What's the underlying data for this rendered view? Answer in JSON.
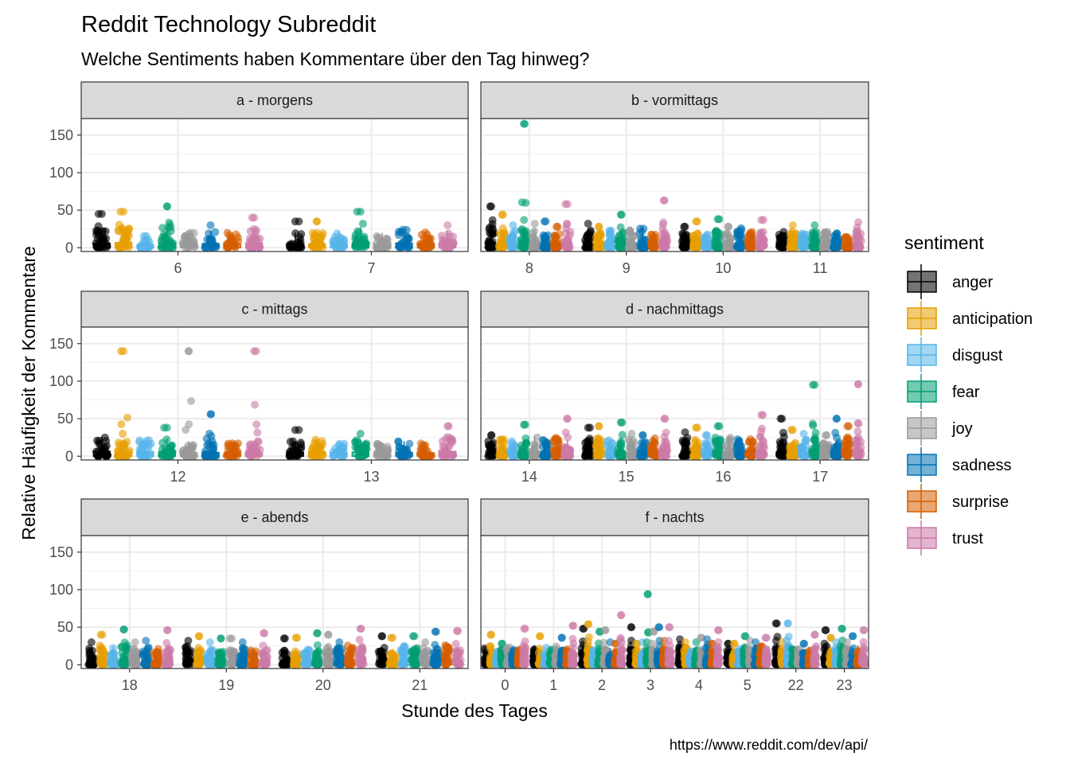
{
  "title": "Reddit Technology Subreddit",
  "subtitle": "Welche Sentiments haben Kommentare über den Tag hinweg?",
  "caption": "https://www.reddit.com/dev/api/",
  "chart_data": {
    "type": "boxplot-jitter-faceted",
    "xlabel": "Stunde des Tages",
    "ylabel": "Relative Häufigkeit der Kommentare",
    "ylim": [
      -5,
      172
    ],
    "yticks": [
      0,
      50,
      100,
      150
    ],
    "grid": true,
    "legend": {
      "title": "sentiment",
      "position": "right",
      "entries": [
        {
          "name": "anger",
          "color": "#000000"
        },
        {
          "name": "anticipation",
          "color": "#E69F00"
        },
        {
          "name": "disgust",
          "color": "#56B4E9"
        },
        {
          "name": "fear",
          "color": "#009E73"
        },
        {
          "name": "joy",
          "color": "#999999"
        },
        {
          "name": "sadness",
          "color": "#0072B2"
        },
        {
          "name": "surprise",
          "color": "#D55E00"
        },
        {
          "name": "trust",
          "color": "#CC79A7"
        }
      ]
    },
    "facets": [
      {
        "label": "a - morgens",
        "hours": [
          "6",
          "7"
        ],
        "max": [
          [
            45,
            48,
            16,
            55,
            20,
            30,
            20,
            40
          ],
          [
            35,
            35,
            22,
            48,
            20,
            25,
            22,
            30
          ]
        ]
      },
      {
        "label": "b - vormittags",
        "hours": [
          "8",
          "9",
          "10",
          "11"
        ],
        "max": [
          [
            55,
            44,
            30,
            165,
            32,
            35,
            28,
            58
          ],
          [
            32,
            28,
            25,
            44,
            25,
            26,
            20,
            63
          ],
          [
            28,
            35,
            18,
            38,
            28,
            26,
            22,
            37
          ],
          [
            22,
            30,
            20,
            30,
            22,
            20,
            18,
            34
          ]
        ]
      },
      {
        "label": "c - mittags",
        "hours": [
          "12",
          "13"
        ],
        "max": [
          [
            26,
            140,
            23,
            38,
            140,
            56,
            18,
            140
          ],
          [
            35,
            24,
            18,
            30,
            18,
            20,
            18,
            40
          ]
        ]
      },
      {
        "label": "d - nachmittags",
        "hours": [
          "14",
          "15",
          "16",
          "17"
        ],
        "max": [
          [
            28,
            25,
            20,
            42,
            26,
            24,
            25,
            50
          ],
          [
            38,
            40,
            22,
            45,
            30,
            28,
            26,
            50
          ],
          [
            32,
            38,
            28,
            40,
            25,
            24,
            24,
            55
          ],
          [
            50,
            35,
            30,
            95,
            28,
            50,
            40,
            96
          ]
        ]
      },
      {
        "label": "e - abends",
        "hours": [
          "18",
          "19",
          "20",
          "21"
        ],
        "max": [
          [
            30,
            40,
            25,
            47,
            30,
            32,
            22,
            46
          ],
          [
            32,
            38,
            30,
            35,
            35,
            30,
            22,
            42
          ],
          [
            35,
            36,
            22,
            42,
            40,
            30,
            26,
            48
          ],
          [
            38,
            36,
            26,
            38,
            30,
            44,
            26,
            45
          ]
        ]
      },
      {
        "label": "f - nachts",
        "hours": [
          "0",
          "1",
          "2",
          "3",
          "4",
          "5",
          "22",
          "23"
        ],
        "max": [
          [
            25,
            40,
            20,
            28,
            25,
            22,
            22,
            48
          ],
          [
            26,
            38,
            24,
            22,
            26,
            36,
            22,
            52
          ],
          [
            48,
            54,
            20,
            44,
            46,
            30,
            28,
            66
          ],
          [
            50,
            28,
            30,
            94,
            44,
            50,
            32,
            50
          ],
          [
            34,
            30,
            22,
            30,
            36,
            34,
            28,
            46
          ],
          [
            28,
            28,
            22,
            38,
            32,
            30,
            25,
            36
          ],
          [
            55,
            30,
            55,
            22,
            22,
            28,
            20,
            40
          ],
          [
            46,
            36,
            30,
            48,
            30,
            38,
            26,
            46
          ]
        ]
      }
    ]
  }
}
